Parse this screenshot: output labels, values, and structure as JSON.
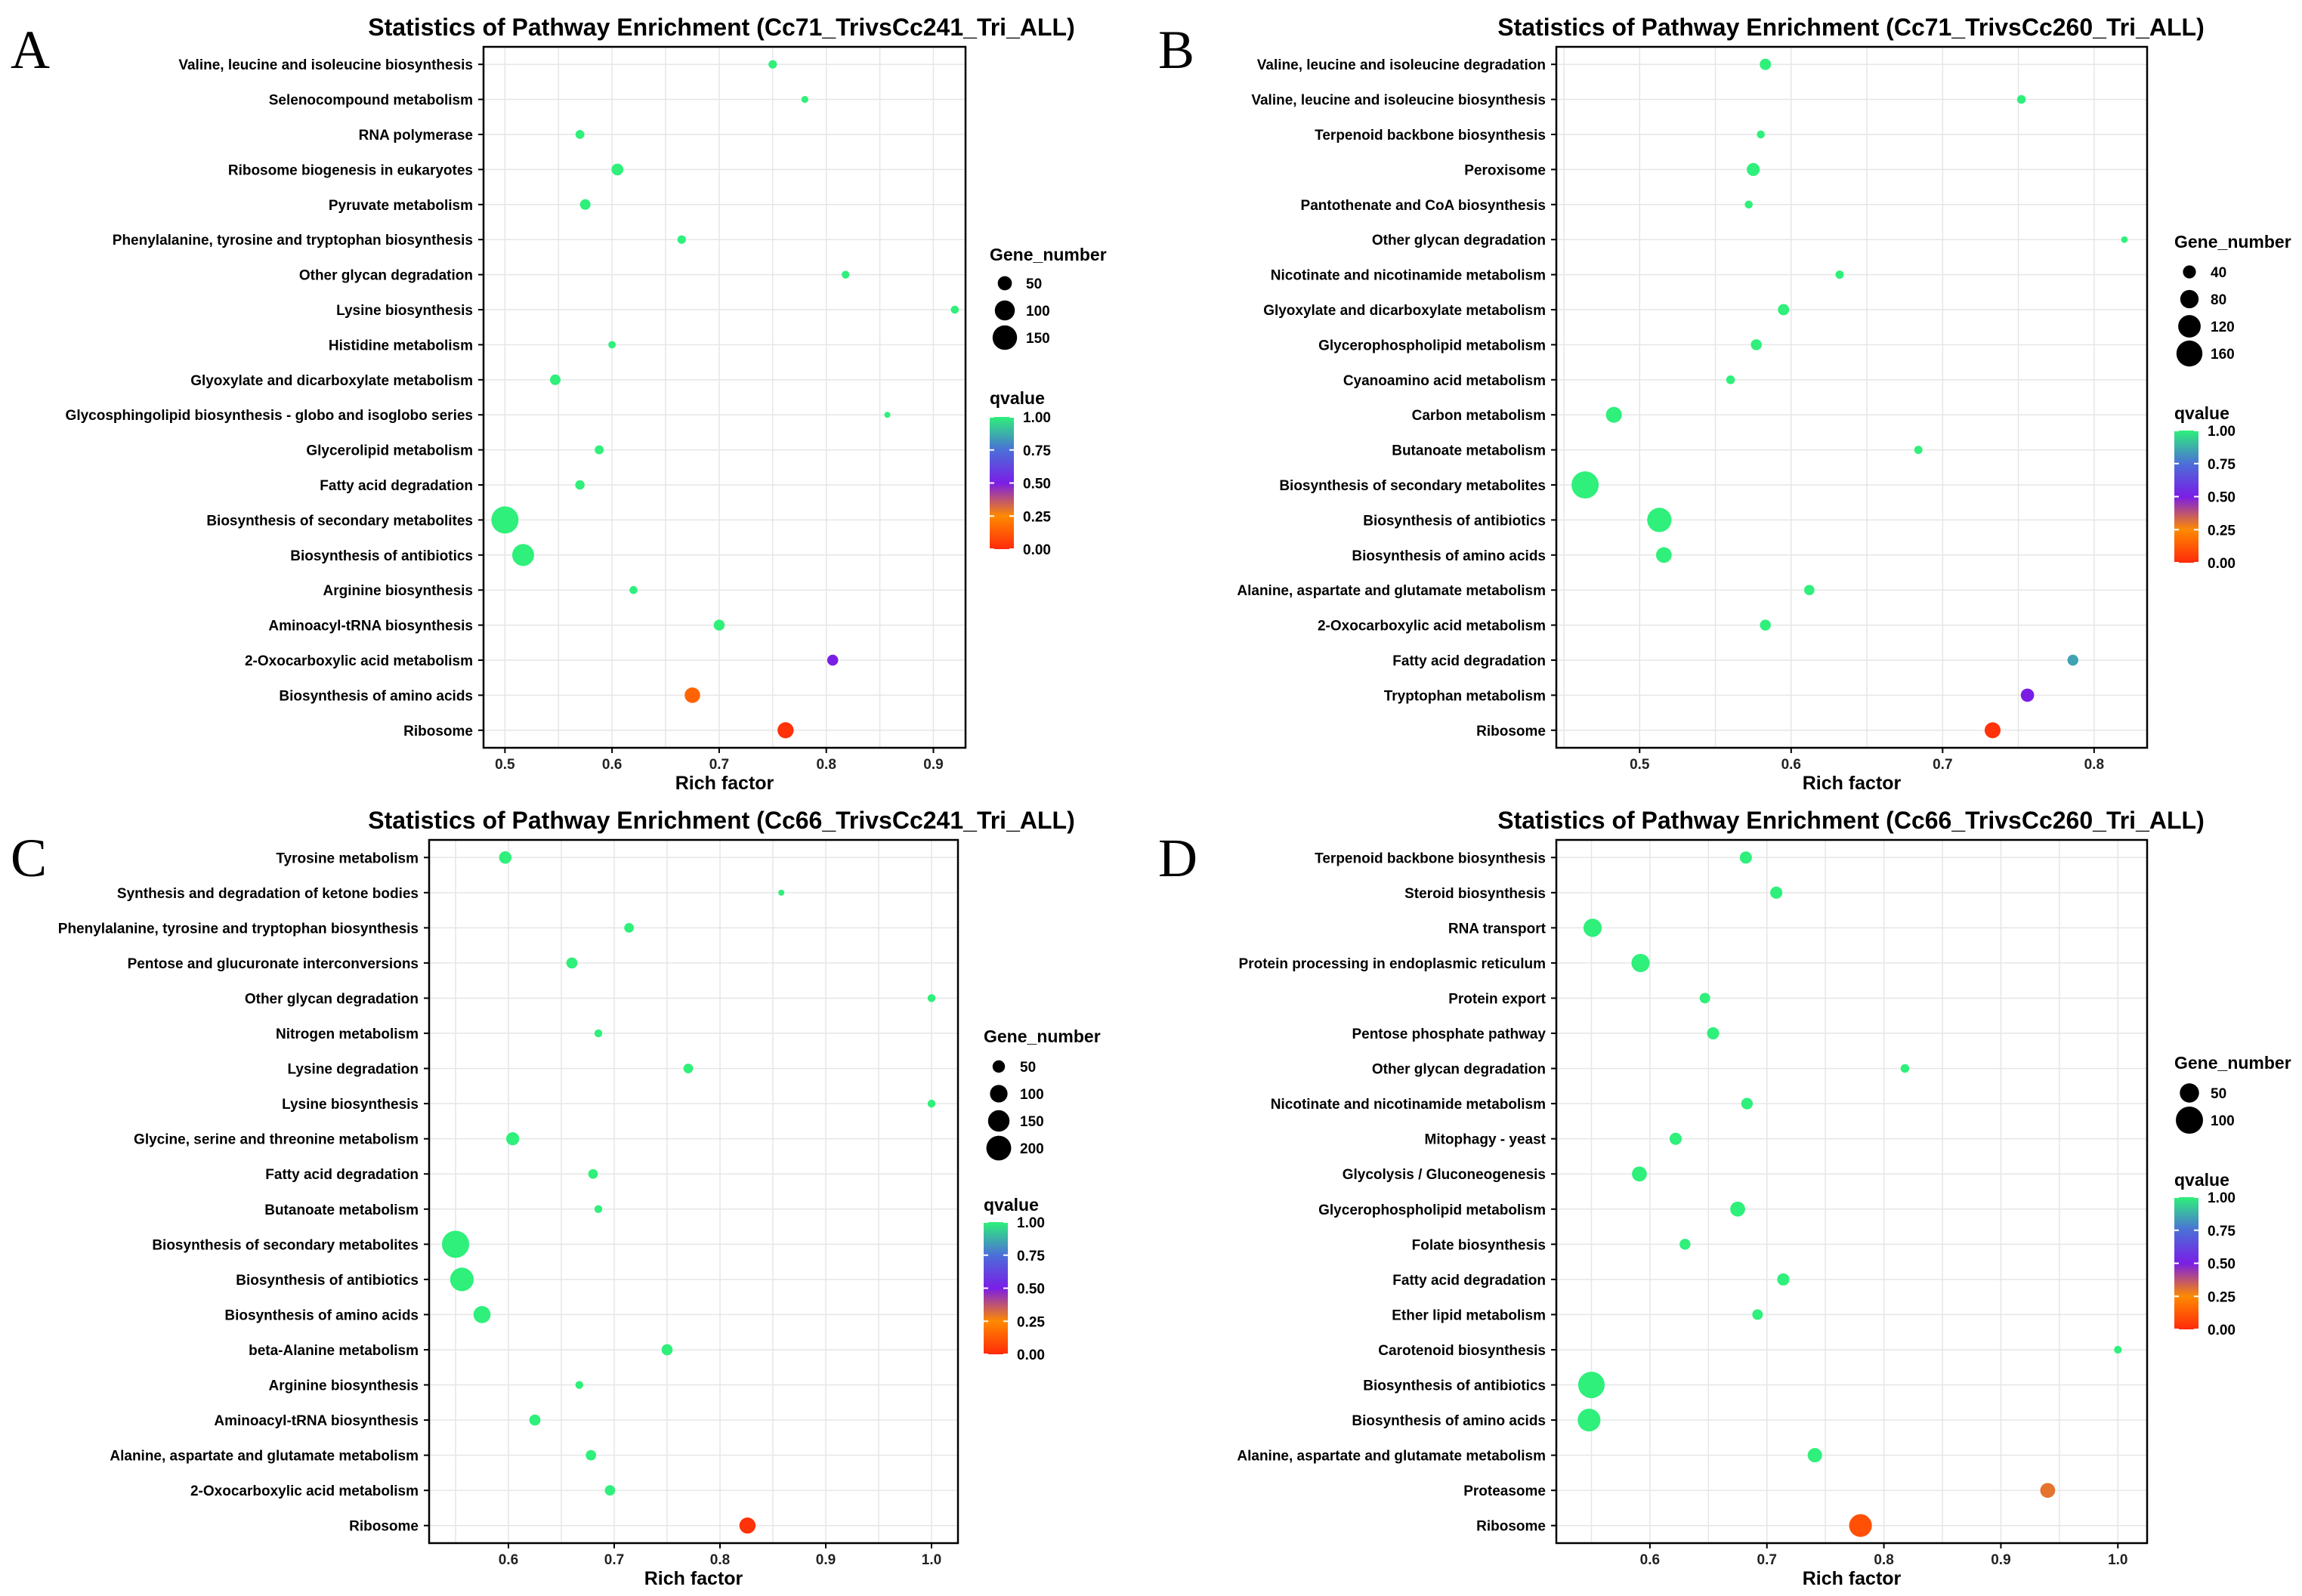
{
  "chart_data": [
    {
      "panel": "A",
      "type": "scatter",
      "title": "Statistics of Pathway Enrichment (Cc71_TrivsCc241_Tri_ALL)",
      "xlabel": "Rich factor",
      "ylabel": "",
      "xlim": [
        0.48,
        0.93
      ],
      "xticks": [
        0.5,
        0.6,
        0.7,
        0.8,
        0.9
      ],
      "tick_labels": [
        "0.5",
        "0.6",
        "0.7",
        "0.8",
        "0.9"
      ],
      "categories": [
        "Valine, leucine and isoleucine biosynthesis",
        "Selenocompound metabolism",
        "RNA polymerase",
        "Ribosome biogenesis in eukaryotes",
        "Pyruvate metabolism",
        "Phenylalanine, tyrosine and tryptophan biosynthesis",
        "Other glycan degradation",
        "Lysine biosynthesis",
        "Histidine metabolism",
        "Glyoxylate and dicarboxylate metabolism",
        "Glycosphingolipid biosynthesis - globo and isoglobo series",
        "Glycerolipid metabolism",
        "Fatty acid degradation",
        "Biosynthesis of secondary metabolites",
        "Biosynthesis of antibiotics",
        "Arginine biosynthesis",
        "Aminoacyl-tRNA biosynthesis",
        "2-Oxocarboxylic acid metabolism",
        "Biosynthesis of amino acids",
        "Ribosome"
      ],
      "rich_factor": [
        0.75,
        0.78,
        0.57,
        0.605,
        0.575,
        0.665,
        0.818,
        0.92,
        0.6,
        0.547,
        0.857,
        0.588,
        0.57,
        0.5,
        0.517,
        0.62,
        0.7,
        0.806,
        0.675,
        0.762
      ],
      "gene_number": [
        18,
        12,
        20,
        35,
        28,
        18,
        15,
        16,
        14,
        28,
        8,
        20,
        22,
        185,
        120,
        16,
        30,
        30,
        60,
        65
      ],
      "qvalue": [
        1,
        1,
        1,
        1,
        1,
        1,
        1,
        1,
        1,
        1,
        1,
        1,
        1,
        1,
        1,
        1,
        1,
        0.5,
        0.15,
        0.02
      ],
      "legend": {
        "size_title": "Gene_number",
        "size_values": [
          50,
          100,
          150
        ],
        "size_labels": [
          "50",
          "100",
          "150"
        ],
        "color_title": "qvalue",
        "color_labels": [
          "1.00",
          "0.75",
          "0.50",
          "0.25",
          "0.00"
        ]
      }
    },
    {
      "panel": "B",
      "type": "scatter",
      "title": "Statistics of Pathway Enrichment (Cc71_TrivsCc260_Tri_ALL)",
      "xlabel": "Rich factor",
      "ylabel": "",
      "xlim": [
        0.445,
        0.835
      ],
      "xticks": [
        0.5,
        0.6,
        0.7,
        0.8
      ],
      "tick_labels": [
        "0.5",
        "0.6",
        "0.7",
        "0.8"
      ],
      "categories": [
        "Valine, leucine and isoleucine degradation",
        "Valine, leucine and isoleucine biosynthesis",
        "Terpenoid backbone biosynthesis",
        "Peroxisome",
        "Pantothenate and CoA biosynthesis",
        "Other glycan degradation",
        "Nicotinate and nicotinamide metabolism",
        "Glyoxylate and dicarboxylate metabolism",
        "Glycerophospholipid metabolism",
        "Cyanoamino acid metabolism",
        "Carbon metabolism",
        "Butanoate metabolism",
        "Biosynthesis of secondary metabolites",
        "Biosynthesis of antibiotics",
        "Biosynthesis of amino acids",
        "Alanine, aspartate and glutamate metabolism",
        "2-Oxocarboxylic acid metabolism",
        "Fatty acid degradation",
        "Tryptophan metabolism",
        "Ribosome"
      ],
      "rich_factor": [
        0.583,
        0.752,
        0.58,
        0.575,
        0.572,
        0.82,
        0.632,
        0.595,
        0.577,
        0.56,
        0.483,
        0.684,
        0.464,
        0.513,
        0.516,
        0.612,
        0.583,
        0.786,
        0.756,
        0.733
      ],
      "gene_number": [
        30,
        18,
        15,
        40,
        15,
        10,
        16,
        30,
        28,
        18,
        60,
        16,
        175,
        140,
        58,
        25,
        28,
        28,
        42,
        60
      ],
      "qvalue": [
        1,
        1,
        1,
        1,
        1,
        1,
        1,
        1,
        1,
        1,
        1,
        1,
        1,
        1,
        1,
        1,
        1,
        0.85,
        0.5,
        0.02
      ],
      "legend": {
        "size_title": "Gene_number",
        "size_values": [
          40,
          80,
          120,
          160
        ],
        "size_labels": [
          "40",
          "80",
          "120",
          "160"
        ],
        "color_title": "qvalue",
        "color_labels": [
          "1.00",
          "0.75",
          "0.50",
          "0.25",
          "0.00"
        ]
      }
    },
    {
      "panel": "C",
      "type": "scatter",
      "title": "Statistics of Pathway Enrichment (Cc66_TrivsCc241_Tri_ALL)",
      "xlabel": "Rich factor",
      "ylabel": "",
      "xlim": [
        0.525,
        1.025
      ],
      "xticks": [
        0.6,
        0.7,
        0.8,
        0.9,
        1.0
      ],
      "tick_labels": [
        "0.6",
        "0.7",
        "0.8",
        "0.9",
        "1.0"
      ],
      "categories": [
        "Tyrosine metabolism",
        "Synthesis and degradation of ketone bodies",
        "Phenylalanine, tyrosine and tryptophan biosynthesis",
        "Pentose and glucuronate interconversions",
        "Other glycan degradation",
        "Nitrogen metabolism",
        "Lysine degradation",
        "Lysine biosynthesis",
        "Glycine, serine and threonine metabolism",
        "Fatty acid degradation",
        "Butanoate metabolism",
        "Biosynthesis of secondary metabolites",
        "Biosynthesis of antibiotics",
        "Biosynthesis of amino acids",
        "beta-Alanine metabolism",
        "Arginine biosynthesis",
        "Aminoacyl-tRNA biosynthesis",
        "Alanine, aspartate and glutamate metabolism",
        "2-Oxocarboxylic acid metabolism",
        "Ribosome"
      ],
      "rich_factor": [
        0.597,
        0.858,
        0.714,
        0.66,
        1.0,
        0.685,
        0.77,
        1.0,
        0.604,
        0.68,
        0.685,
        0.55,
        0.556,
        0.575,
        0.75,
        0.667,
        0.625,
        0.678,
        0.696,
        0.826
      ],
      "gene_number": [
        50,
        10,
        30,
        40,
        20,
        20,
        30,
        20,
        55,
        30,
        20,
        240,
        180,
        95,
        40,
        20,
        40,
        35,
        35,
        85
      ],
      "qvalue": [
        1,
        1,
        1,
        1,
        1,
        1,
        1,
        1,
        1,
        1,
        1,
        1,
        1,
        1,
        1,
        1,
        1,
        1,
        1,
        0.02
      ],
      "legend": {
        "size_title": "Gene_number",
        "size_values": [
          50,
          100,
          150,
          200
        ],
        "size_labels": [
          "50",
          "100",
          "150",
          "200"
        ],
        "color_title": "qvalue",
        "color_labels": [
          "1.00",
          "0.75",
          "0.50",
          "0.25",
          "0.00"
        ]
      }
    },
    {
      "panel": "D",
      "type": "scatter",
      "title": "Statistics of Pathway Enrichment (Cc66_TrivsCc260_Tri_ALL)",
      "xlabel": "Rich factor",
      "ylabel": "",
      "xlim": [
        0.52,
        1.025
      ],
      "xticks": [
        0.6,
        0.7,
        0.8,
        0.9,
        1.0
      ],
      "tick_labels": [
        "0.6",
        "0.7",
        "0.8",
        "0.9",
        "1.0"
      ],
      "categories": [
        "Terpenoid backbone biosynthesis",
        "Steroid biosynthesis",
        "RNA transport",
        "Protein processing in endoplasmic reticulum",
        "Protein export",
        "Pentose phosphate pathway",
        "Other glycan degradation",
        "Nicotinate and nicotinamide metabolism",
        "Mitophagy - yeast",
        "Glycolysis / Gluconeogenesis",
        "Glycerophospholipid metabolism",
        "Folate biosynthesis",
        "Fatty acid degradation",
        "Ether lipid metabolism",
        "Carotenoid biosynthesis",
        "Biosynthesis of antibiotics",
        "Biosynthesis of amino acids",
        "Alanine, aspartate and glutamate metabolism",
        "Proteasome",
        "Ribosome"
      ],
      "rich_factor": [
        0.682,
        0.708,
        0.551,
        0.592,
        0.647,
        0.654,
        0.818,
        0.683,
        0.622,
        0.591,
        0.675,
        0.63,
        0.714,
        0.692,
        1.0,
        0.55,
        0.548,
        0.741,
        0.94,
        0.78
      ],
      "gene_number": [
        20,
        20,
        45,
        45,
        15,
        20,
        10,
        18,
        20,
        30,
        30,
        16,
        20,
        15,
        8,
        95,
        70,
        28,
        30,
        70
      ],
      "qvalue": [
        1,
        1,
        1,
        1,
        1,
        1,
        1,
        1,
        1,
        1,
        1,
        1,
        1,
        1,
        1,
        1,
        1,
        1,
        0.3,
        0.1
      ],
      "legend": {
        "size_title": "Gene_number",
        "size_values": [
          50,
          100
        ],
        "size_labels": [
          "50",
          "100"
        ],
        "color_title": "qvalue",
        "color_labels": [
          "1.00",
          "0.75",
          "0.50",
          "0.25",
          "0.00"
        ]
      }
    }
  ],
  "colors": {
    "q_high": "#2ef07a",
    "q_075": "#4b6fd8",
    "q_050": "#7a1ee6",
    "q_025": "#ff8a00",
    "q_low": "#ff2a0a",
    "grid": "#e6e6e6",
    "frame": "#000000"
  }
}
